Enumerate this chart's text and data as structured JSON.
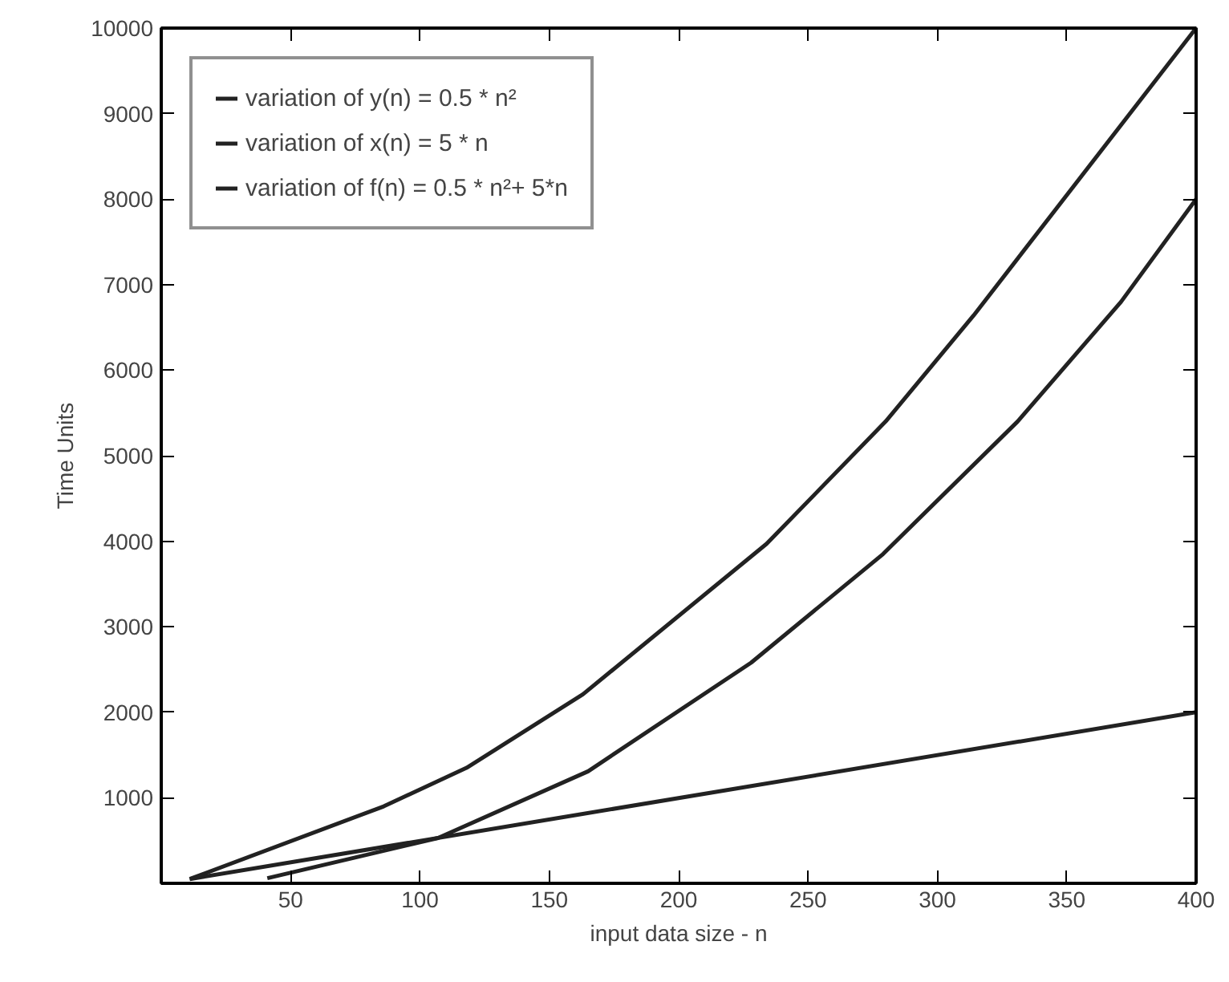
{
  "chart_data": {
    "type": "line",
    "xlabel": "input data size - n",
    "ylabel": "Time Units",
    "xlim": [
      0,
      400
    ],
    "ylim": [
      0,
      10000
    ],
    "xticks": [
      50,
      100,
      150,
      200,
      250,
      300,
      350,
      400
    ],
    "yticks": [
      1000,
      2000,
      3000,
      4000,
      5000,
      6000,
      7000,
      8000,
      9000,
      10000
    ],
    "grid": false,
    "legend": "top left",
    "marker": "none",
    "line_style": "solid",
    "series": [
      {
        "name": "variation of y(n) = 0.5 * n²",
        "color": "#222222",
        "x": [
          41,
          107,
          165,
          228,
          279,
          331,
          371,
          400
        ],
        "values": [
          60,
          530,
          1310,
          2580,
          3850,
          5400,
          6800,
          8000
        ]
      },
      {
        "name": "variation of x(n) = 5 * n",
        "color": "#222222",
        "x": [
          11,
          400
        ],
        "values": [
          50,
          2000
        ]
      },
      {
        "name": "variation of f(n) = 0.5 * n²+ 5*n",
        "color": "#222222",
        "x": [
          11,
          86,
          118,
          163,
          234,
          280,
          314,
          400
        ],
        "values": [
          50,
          900,
          1350,
          2210,
          3970,
          5400,
          6640,
          10000
        ]
      }
    ]
  }
}
